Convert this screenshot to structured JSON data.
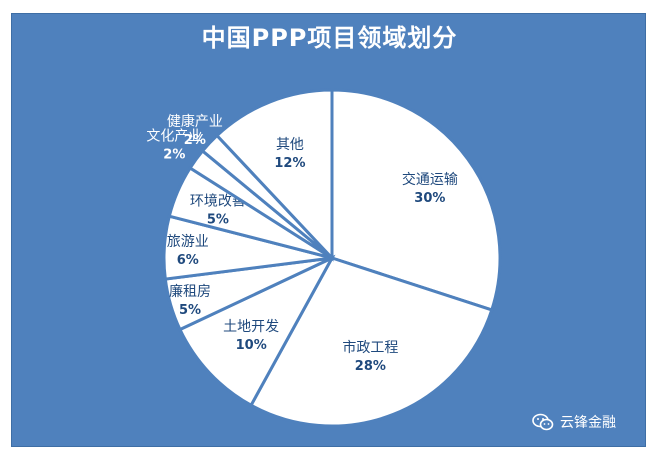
{
  "chart_data": {
    "type": "pie",
    "title": "中国PPP项目领域划分",
    "slices": [
      {
        "label": "交通运输",
        "value": 30,
        "value_label": "30%"
      },
      {
        "label": "市政工程",
        "value": 28,
        "value_label": "28%"
      },
      {
        "label": "土地开发",
        "value": 10,
        "value_label": "10%"
      },
      {
        "label": "廉租房",
        "value": 5,
        "value_label": "5%"
      },
      {
        "label": "旅游业",
        "value": 6,
        "value_label": "6%"
      },
      {
        "label": "环境改善",
        "value": 5,
        "value_label": "5%"
      },
      {
        "label": "文化产业",
        "value": 2,
        "value_label": "2%"
      },
      {
        "label": "健康产业",
        "value": 2,
        "value_label": "2%"
      },
      {
        "label": "其他",
        "value": 12,
        "value_label": "12%"
      }
    ],
    "colors": {
      "background": "#4f81bd",
      "slice_fill": "#ffffff",
      "slice_edge": "#4f81bd",
      "label_text": "#1f497d",
      "outer_label_text": "#ffffff"
    }
  },
  "watermark": {
    "text": "云锋金融",
    "icon": "wechat-icon"
  }
}
